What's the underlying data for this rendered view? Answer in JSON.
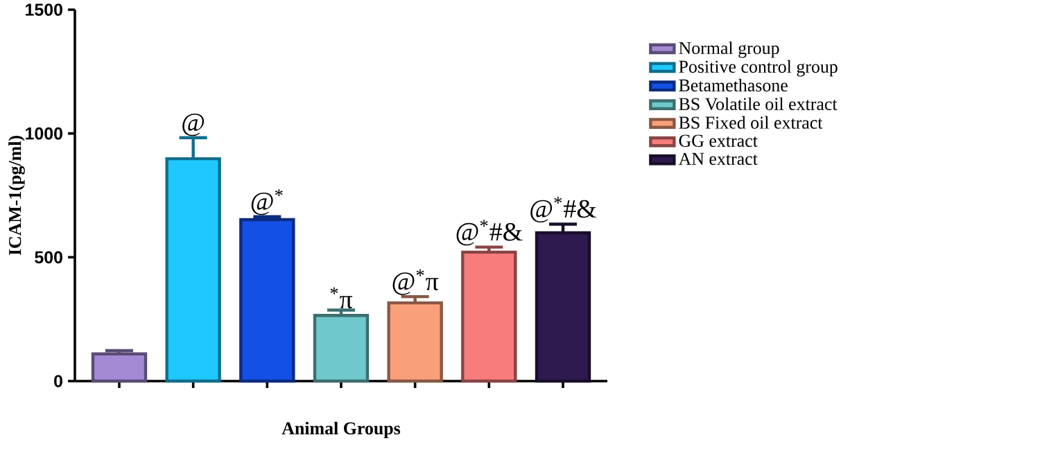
{
  "chart_data": {
    "type": "bar",
    "xlabel": "Animal Groups",
    "ylabel": "ICAM-1(pg/ml)",
    "categories": [
      null,
      null,
      null,
      null,
      null,
      null,
      null
    ],
    "ylim": [
      0,
      1500
    ],
    "yticks": [
      0,
      500,
      1000,
      1500
    ],
    "legend": "right",
    "series": [
      {
        "name": "Normal group",
        "color": "#a48ad4",
        "values": [
          110,
          null,
          null,
          null,
          null,
          null,
          null
        ],
        "errors": [
          13,
          null,
          null,
          null,
          null,
          null,
          null
        ],
        "value_labels": [
          null,
          null,
          null,
          null,
          null,
          null,
          null
        ]
      },
      {
        "name": "Positive control group",
        "color": "#1ec8ff",
        "values": [
          null,
          898,
          null,
          null,
          null,
          null,
          null
        ],
        "errors": [
          null,
          85,
          null,
          null,
          null,
          null,
          null
        ],
        "value_labels": [
          null,
          "@",
          null,
          null,
          null,
          null,
          null
        ]
      },
      {
        "name": "Betamethasone",
        "color": "#1450e6",
        "values": [
          null,
          null,
          652,
          null,
          null,
          null,
          null
        ],
        "errors": [
          null,
          null,
          12,
          null,
          null,
          null,
          null
        ],
        "value_labels": [
          null,
          null,
          "@$^{*}$",
          null,
          null,
          null,
          null
        ]
      },
      {
        "name": "BS Volatile oil extract",
        "color": "#6fc8cc",
        "values": [
          null,
          null,
          null,
          265,
          null,
          null,
          null
        ],
        "errors": [
          null,
          null,
          null,
          22,
          null,
          null,
          null
        ],
        "value_labels": [
          null,
          null,
          null,
          "$^{*}$π",
          null,
          null,
          null
        ]
      },
      {
        "name": "BS Fixed oil extract",
        "color": "#f9a07a",
        "values": [
          null,
          null,
          null,
          null,
          316,
          null,
          null
        ],
        "errors": [
          null,
          null,
          null,
          null,
          25,
          null,
          null
        ],
        "value_labels": [
          null,
          null,
          null,
          null,
          "@$^{*}$π",
          null,
          null
        ]
      },
      {
        "name": "GG extract",
        "color": "#f97c7c",
        "values": [
          null,
          null,
          null,
          null,
          null,
          521,
          null
        ],
        "errors": [
          null,
          null,
          null,
          null,
          null,
          20,
          null
        ],
        "value_labels": [
          null,
          null,
          null,
          null,
          null,
          "@$^{*}$#&",
          null
        ]
      },
      {
        "name": "AN extract",
        "color": "#2e1a4f",
        "values": [
          null,
          null,
          null,
          null,
          null,
          null,
          599
        ],
        "errors": [
          null,
          null,
          null,
          null,
          null,
          null,
          35
        ],
        "value_labels": [
          null,
          null,
          null,
          null,
          null,
          null,
          "@$^{*}$#&"
        ]
      }
    ]
  }
}
